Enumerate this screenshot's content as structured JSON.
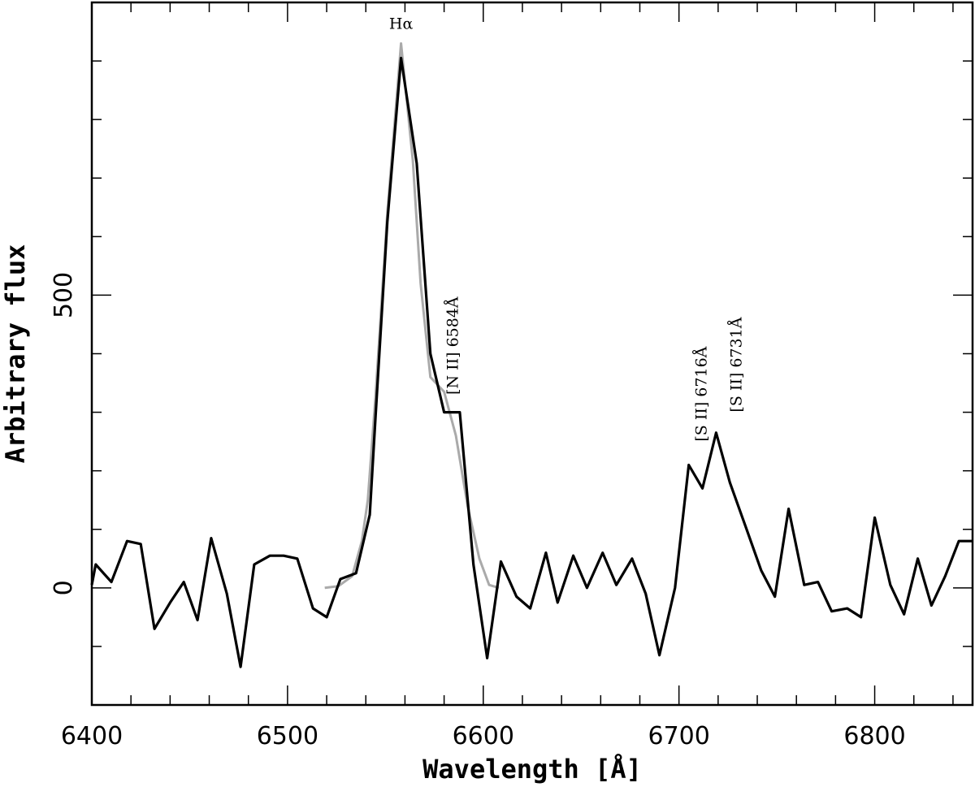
{
  "chart_data": {
    "type": "line",
    "xlabel": "Wavelength [Å]",
    "ylabel": "Arbitrary flux",
    "xlim": [
      6400,
      6850
    ],
    "ylim": [
      -200,
      1000
    ],
    "x_ticks": [
      6400,
      6500,
      6600,
      6700,
      6800
    ],
    "y_ticks": [
      0,
      500
    ],
    "colors": {
      "observed": "#000000",
      "fit": "#aaaaaa"
    },
    "series": [
      {
        "role": "observed",
        "x": [
          6400,
          6402,
          6410,
          6418,
          6425,
          6432,
          6440,
          6447,
          6454,
          6461,
          6469,
          6476,
          6483,
          6491,
          6498,
          6505,
          6513,
          6520,
          6527,
          6535,
          6542,
          6545,
          6551,
          6558,
          6566,
          6573,
          6580,
          6588,
          6595,
          6602,
          6609,
          6617,
          6624,
          6632,
          6638,
          6646,
          6653,
          6661,
          6668,
          6676,
          6683,
          6690,
          6698,
          6705,
          6712,
          6719,
          6726,
          6734,
          6742,
          6749,
          6756,
          6764,
          6771,
          6778,
          6786,
          6793,
          6800,
          6808,
          6815,
          6822,
          6829,
          6836,
          6843,
          6850
        ],
        "y": [
          5,
          40,
          10,
          80,
          75,
          -70,
          -25,
          10,
          -55,
          85,
          -10,
          -135,
          40,
          55,
          55,
          50,
          -35,
          -50,
          15,
          25,
          125,
          295,
          625,
          905,
          725,
          400,
          300,
          300,
          40,
          -120,
          45,
          -15,
          -35,
          60,
          -25,
          55,
          0,
          60,
          5,
          50,
          -10,
          -115,
          0,
          210,
          170,
          265,
          180,
          105,
          30,
          -15,
          135,
          5,
          10,
          -40,
          -35,
          -50,
          120,
          5,
          -45,
          50,
          -30,
          20,
          80,
          80
        ]
      },
      {
        "role": "fit",
        "x": [
          6519,
          6526,
          6533,
          6538,
          6541,
          6545,
          6551,
          6558,
          6564,
          6568,
          6573,
          6580,
          6586,
          6592,
          6598,
          6603,
          6608
        ],
        "y": [
          0,
          3,
          20,
          80,
          150,
          330,
          640,
          930,
          730,
          520,
          360,
          335,
          260,
          140,
          50,
          5,
          0
        ]
      }
    ],
    "annotations": [
      {
        "text": "Hα",
        "x": 6558,
        "y": 955,
        "rotate": false
      },
      {
        "text": "[N II] 6584Å",
        "x": 6587,
        "y": 330,
        "rotate": true
      },
      {
        "text": "[S II] 6716Å",
        "x": 6714,
        "y": 250,
        "rotate": true
      },
      {
        "text": "[S II] 6731Å",
        "x": 6732,
        "y": 300,
        "rotate": true
      }
    ]
  }
}
